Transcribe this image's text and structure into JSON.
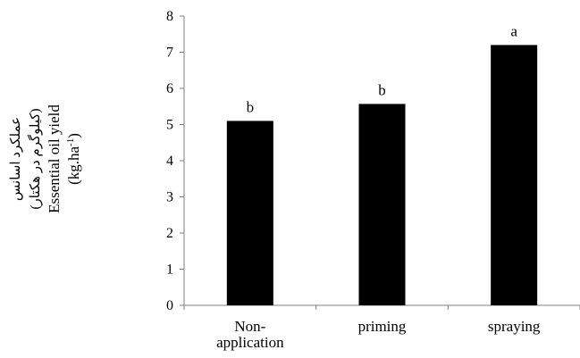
{
  "chart_data": {
    "type": "bar",
    "categories": [
      [
        "Non-",
        "application"
      ],
      [
        "priming"
      ],
      [
        "spraying"
      ]
    ],
    "values": [
      5.1,
      5.57,
      7.2
    ],
    "bar_labels": [
      "b",
      "b",
      "a"
    ],
    "ylim": [
      0,
      8
    ],
    "yticks": [
      "0",
      "1",
      "2",
      "3",
      "4",
      "5",
      "6",
      "7",
      "8"
    ],
    "ylabel": {
      "persian_line1": "عملکرد اسانس",
      "persian_line2": "(کیلوگرم در هکتار)",
      "english_line1": "Essential oil yield",
      "english_unit_base": "(kg.ha",
      "english_unit_sup": "-1",
      "english_unit_end": ")"
    },
    "bar_color": "#000000",
    "grid": false,
    "legend": "none"
  }
}
